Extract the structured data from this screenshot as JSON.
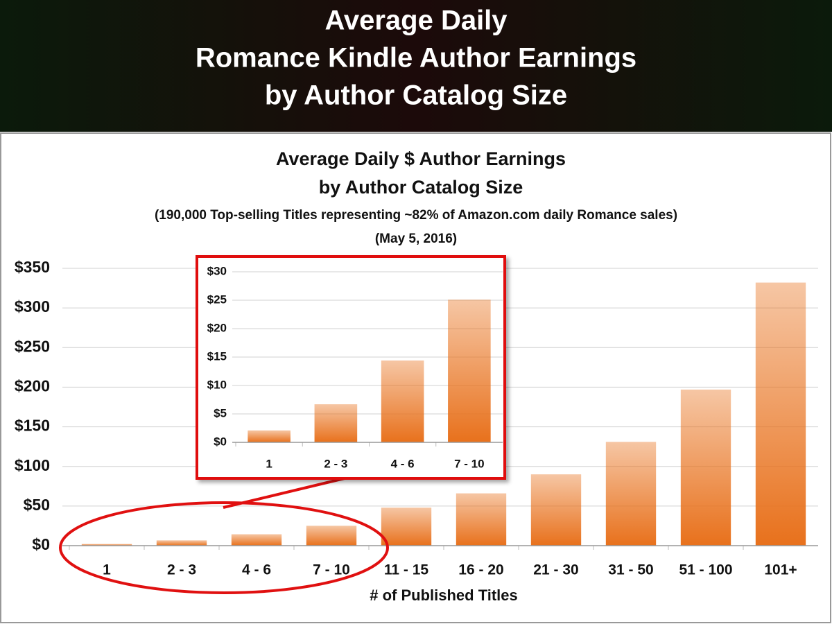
{
  "header": {
    "title": [
      "Average Daily",
      "Romance Kindle Author Earnings",
      "by Author Catalog Size"
    ]
  },
  "chart_data": [
    {
      "type": "bar",
      "title": [
        "Average Daily $ Author Earnings",
        "by Author Catalog Size"
      ],
      "subtitle": [
        "(190,000 Top-selling Titles representing ~82% of Amazon.com daily Romance sales)",
        "(May 5, 2016)"
      ],
      "x_label": "# of Published Titles",
      "categories": [
        "1",
        "2 - 3",
        "4 - 6",
        "7 - 10",
        "11 - 15",
        "16 - 20",
        "21 - 30",
        "31 - 50",
        "51 - 100",
        "101+"
      ],
      "values": [
        2.1,
        6.7,
        14.4,
        25.1,
        48,
        66,
        90,
        131,
        197,
        332
      ],
      "color": "#e8711c",
      "ylim": [
        0,
        350
      ],
      "yticks": [
        {
          "value": 0,
          "label": "$0"
        },
        {
          "value": 50,
          "label": "$50"
        },
        {
          "value": 100,
          "label": "$100"
        },
        {
          "value": 150,
          "label": "$150"
        },
        {
          "value": 200,
          "label": "$200"
        },
        {
          "value": 250,
          "label": "$250"
        },
        {
          "value": 300,
          "label": "$300"
        },
        {
          "value": 350,
          "label": "$350"
        }
      ],
      "grid": true
    },
    {
      "type": "bar",
      "categories": [
        "1",
        "2 - 3",
        "4 - 6",
        "7 - 10"
      ],
      "values": [
        2.1,
        6.7,
        14.4,
        25.1
      ],
      "color": "#e8711c",
      "ylim": [
        0,
        30
      ],
      "yticks": [
        {
          "value": 0,
          "label": "$0"
        },
        {
          "value": 5,
          "label": "$5"
        },
        {
          "value": 10,
          "label": "$10"
        },
        {
          "value": 15,
          "label": "$15"
        },
        {
          "value": 20,
          "label": "$20"
        },
        {
          "value": 25,
          "label": "$25"
        },
        {
          "value": 30,
          "label": "$30"
        }
      ],
      "grid": true
    }
  ]
}
